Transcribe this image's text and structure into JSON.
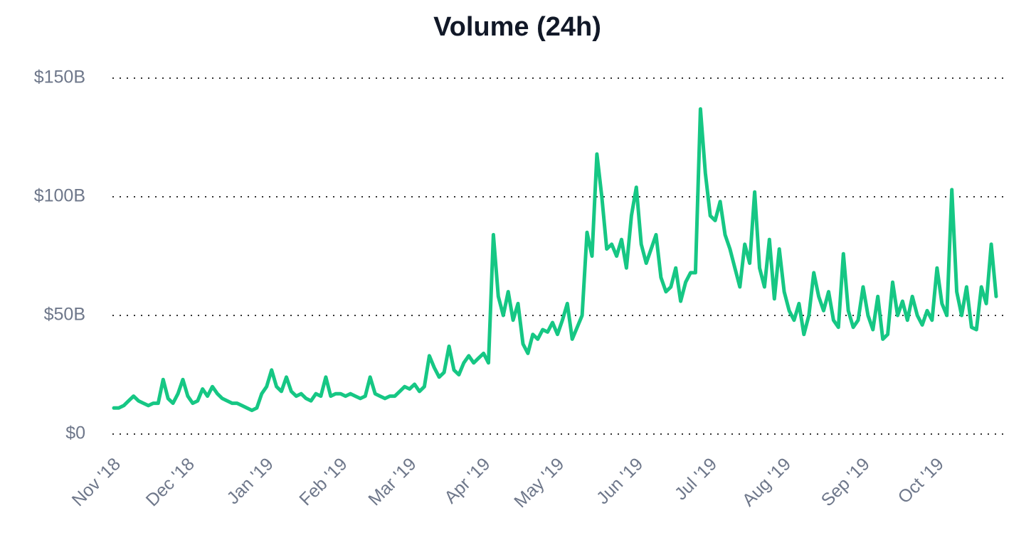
{
  "chart_data": {
    "type": "line",
    "title": "Volume (24h)",
    "categories": [
      "Nov '18",
      null,
      null,
      null,
      null,
      null,
      null,
      null,
      null,
      null,
      null,
      null,
      null,
      null,
      null,
      "Dec '18",
      null,
      null,
      null,
      null,
      null,
      null,
      null,
      null,
      null,
      null,
      null,
      null,
      null,
      null,
      null,
      "Jan '19",
      null,
      null,
      null,
      null,
      null,
      null,
      null,
      null,
      null,
      null,
      null,
      null,
      null,
      null,
      "Feb '19",
      null,
      null,
      null,
      null,
      null,
      null,
      null,
      null,
      null,
      null,
      null,
      null,
      null,
      "Mar '19",
      null,
      null,
      null,
      null,
      null,
      null,
      null,
      null,
      null,
      null,
      null,
      null,
      null,
      null,
      "Apr '19",
      null,
      null,
      null,
      null,
      null,
      null,
      null,
      null,
      null,
      null,
      null,
      null,
      null,
      null,
      "May '19",
      null,
      null,
      null,
      null,
      null,
      null,
      null,
      null,
      null,
      null,
      null,
      null,
      null,
      null,
      null,
      "Jun '19",
      null,
      null,
      null,
      null,
      null,
      null,
      null,
      null,
      null,
      null,
      null,
      null,
      null,
      null,
      "Jul '19",
      null,
      null,
      null,
      null,
      null,
      null,
      null,
      null,
      null,
      null,
      null,
      null,
      null,
      null,
      "Aug '19",
      null,
      null,
      null,
      null,
      null,
      null,
      null,
      null,
      null,
      null,
      null,
      null,
      null,
      null,
      null,
      "Sep '19",
      null,
      null,
      null,
      null,
      null,
      null,
      null,
      null,
      null,
      null,
      null,
      null,
      null,
      null,
      "Oct '19",
      null,
      null,
      null,
      null,
      null,
      null,
      null,
      null,
      null,
      null,
      null,
      null
    ],
    "series": [
      {
        "color": "#16c784",
        "values": [
          11,
          11,
          12,
          14,
          16,
          14,
          13,
          12,
          13,
          13,
          23,
          15,
          13,
          17,
          23,
          16,
          13,
          14,
          19,
          16,
          20,
          17,
          15,
          14,
          13,
          13,
          12,
          11,
          10,
          11,
          17,
          20,
          27,
          20,
          18,
          24,
          18,
          16,
          17,
          15,
          14,
          17,
          16,
          24,
          16,
          17,
          17,
          16,
          17,
          16,
          15,
          16,
          24,
          17,
          16,
          15,
          16,
          16,
          18,
          20,
          19,
          21,
          18,
          20,
          33,
          28,
          24,
          26,
          37,
          27,
          25,
          30,
          33,
          30,
          32,
          34,
          30,
          84,
          58,
          50,
          60,
          48,
          55,
          38,
          34,
          42,
          40,
          44,
          43,
          47,
          42,
          48,
          55,
          40,
          45,
          50,
          85,
          75,
          118,
          100,
          78,
          80,
          75,
          82,
          70,
          92,
          104,
          80,
          72,
          78,
          84,
          66,
          60,
          62,
          70,
          56,
          64,
          68,
          68,
          137,
          110,
          92,
          90,
          98,
          84,
          78,
          70,
          62,
          80,
          72,
          102,
          70,
          62,
          82,
          57,
          78,
          60,
          52,
          48,
          55,
          42,
          50,
          68,
          58,
          52,
          60,
          48,
          45,
          76,
          52,
          45,
          48,
          62,
          50,
          44,
          58,
          40,
          42,
          64,
          50,
          56,
          48,
          58,
          50,
          46,
          52,
          48,
          70,
          55,
          50,
          103,
          60,
          50,
          62,
          45,
          44,
          62,
          55,
          80,
          58
        ]
      }
    ],
    "ylim": [
      0,
      150
    ],
    "yticks": [
      {
        "value": 0,
        "label": "$0"
      },
      {
        "value": 50,
        "label": "$50B"
      },
      {
        "value": 100,
        "label": "$100B"
      },
      {
        "value": 150,
        "label": "$150B"
      }
    ],
    "grid": true
  }
}
